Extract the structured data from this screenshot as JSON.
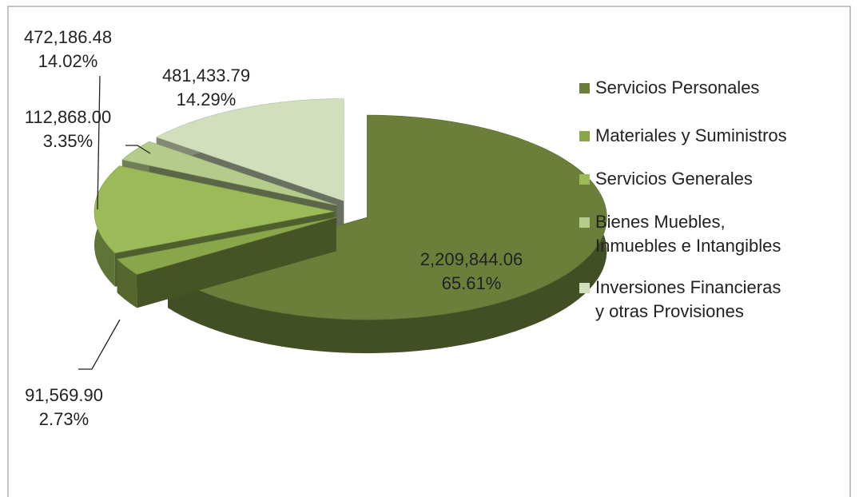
{
  "chart_data": {
    "type": "pie3d",
    "categories": [
      "Servicios Personales",
      "Materiales y Suministros",
      "Servicios Generales",
      "Bienes Muebles, Inmuebles e Intangibles",
      "Inversiones Financieras y otras Provisiones"
    ],
    "values": [
      2209844.06,
      91569.9,
      472186.48,
      112868.0,
      481433.79
    ],
    "value_labels": [
      "2,209,844.06",
      "91,569.90",
      "472,186.48",
      "112,868.00",
      "481,433.79"
    ],
    "percentages": [
      65.61,
      2.73,
      14.02,
      3.35,
      14.29
    ],
    "percentage_labels": [
      "65.61%",
      "2.73%",
      "14.02%",
      "3.35%",
      "14.29%"
    ],
    "colors": [
      "#6b7f3a",
      "#89a64a",
      "#9bbb59",
      "#b4cb8c",
      "#d2dfbd"
    ],
    "legend": "right"
  }
}
